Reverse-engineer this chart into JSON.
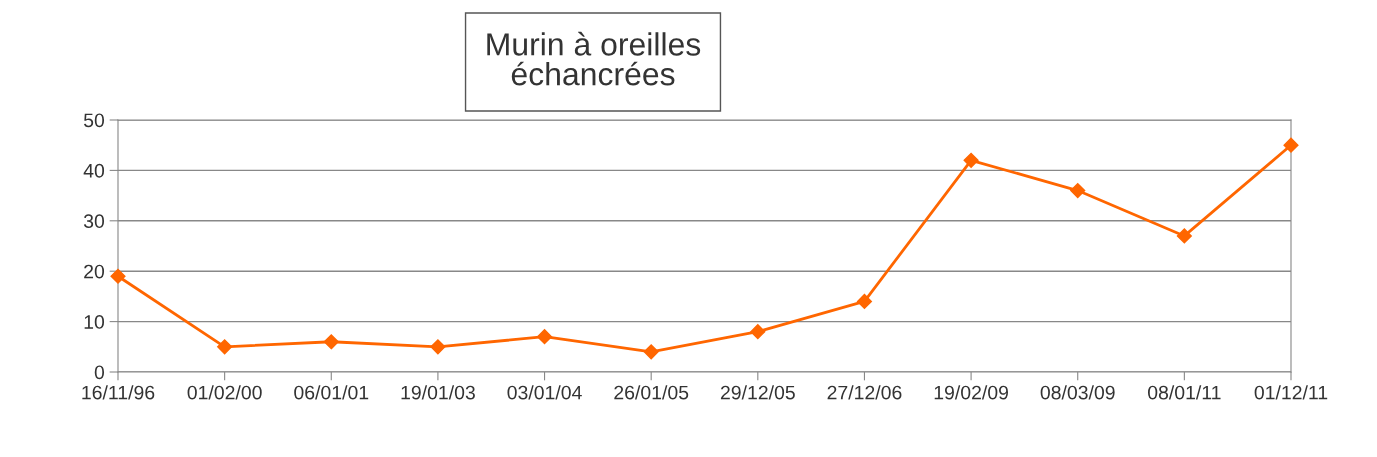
{
  "chart_data": {
    "type": "line",
    "title": "Murin à oreilles\néchancrées",
    "categories": [
      "16/11/96",
      "01/02/00",
      "06/01/01",
      "19/01/03",
      "03/01/04",
      "26/01/05",
      "29/12/05",
      "27/12/06",
      "19/02/09",
      "08/03/09",
      "08/01/11",
      "01/12/11"
    ],
    "series": [
      {
        "color": "#ff6600",
        "values": [
          19,
          5,
          6,
          5,
          7,
          4,
          8,
          14,
          42,
          36,
          27,
          45
        ]
      }
    ],
    "ylim": [
      0,
      50
    ],
    "yticks": [
      0,
      10,
      20,
      30,
      40,
      50
    ],
    "grid": "y",
    "legend": false,
    "marker": "diamond",
    "line_style": "solid"
  }
}
